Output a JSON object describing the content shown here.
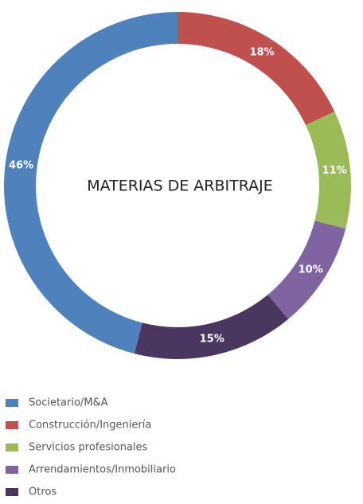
{
  "chart_data": {
    "type": "donut",
    "title": "MATERIAS DE ARBITRAJE",
    "categories": [
      "Societario/M&A",
      "Construcción/Ingeniería",
      "Servicios profesionales",
      "Arrendamientos/Inmobiliario",
      "Otros"
    ],
    "values": [
      46,
      18,
      11,
      10,
      15
    ],
    "value_labels": [
      "46%",
      "18%",
      "11%",
      "10%",
      "15%"
    ],
    "colors": [
      "#4f81bd",
      "#c0504d",
      "#9bbb59",
      "#8064a2",
      "#4b3660"
    ]
  }
}
